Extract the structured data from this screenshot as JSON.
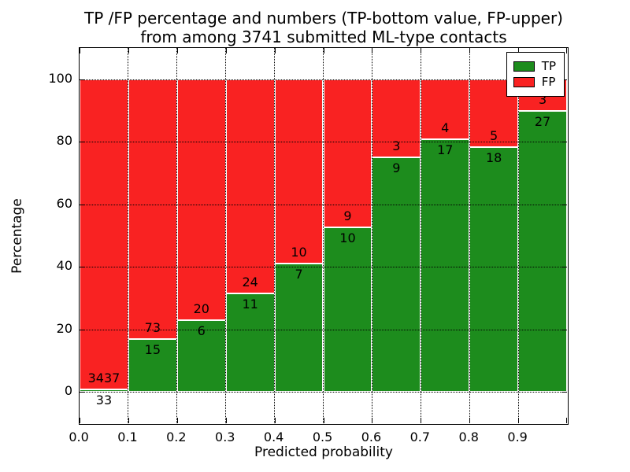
{
  "title": {
    "line1": "TP /FP percentage and numbers (TP-bottom value, FP-upper)",
    "line2": "from among 3741 submitted ML-type contacts"
  },
  "axes": {
    "xlabel": "Predicted probability",
    "ylabel": "Percentage",
    "x_tick_labels": [
      "0.0",
      "0.1",
      "0.2",
      "0.3",
      "0.4",
      "0.5",
      "0.6",
      "0.7",
      "0.8",
      "0.9"
    ],
    "y_tick_labels": [
      "0",
      "20",
      "40",
      "60",
      "80",
      "100"
    ],
    "y_tick_values": [
      0,
      20,
      40,
      60,
      80,
      100
    ],
    "grid_style": "dotted"
  },
  "legend": {
    "position": "upper right",
    "entries": [
      {
        "label": "TP",
        "color": "#1d8c1d"
      },
      {
        "label": "FP",
        "color": "#f92222"
      }
    ]
  },
  "chart_data": {
    "type": "bar",
    "stacked": true,
    "normalized_to_percent": true,
    "title": "TP /FP percentage and numbers (TP-bottom value, FP-upper) from among 3741 submitted ML-type contacts",
    "xlabel": "Predicted probability",
    "ylabel": "Percentage",
    "total_contacts": 3741,
    "bin_edges": [
      0.0,
      0.1,
      0.2,
      0.3,
      0.4,
      0.5,
      0.6,
      0.7,
      0.8,
      0.9,
      1.0
    ],
    "categories": [
      "0.0-0.1",
      "0.1-0.2",
      "0.2-0.3",
      "0.3-0.4",
      "0.4-0.5",
      "0.5-0.6",
      "0.6-0.7",
      "0.7-0.8",
      "0.8-0.9",
      "0.9-1.0"
    ],
    "series": [
      {
        "name": "TP",
        "color": "#1d8c1d",
        "counts": [
          33,
          15,
          6,
          11,
          7,
          10,
          9,
          17,
          18,
          27
        ],
        "percent": [
          0.95,
          17.05,
          23.08,
          31.43,
          41.18,
          52.63,
          75.0,
          80.95,
          78.26,
          90.0
        ]
      },
      {
        "name": "FP",
        "color": "#f92222",
        "counts": [
          3437,
          73,
          20,
          24,
          10,
          9,
          3,
          4,
          5,
          3
        ],
        "percent": [
          99.05,
          82.95,
          76.92,
          68.57,
          58.82,
          47.37,
          25.0,
          19.05,
          21.74,
          10.0
        ]
      }
    ],
    "ylim": [
      -10,
      110
    ],
    "xlim": [
      0.0,
      1.0
    ],
    "legend_position": "upper right"
  }
}
